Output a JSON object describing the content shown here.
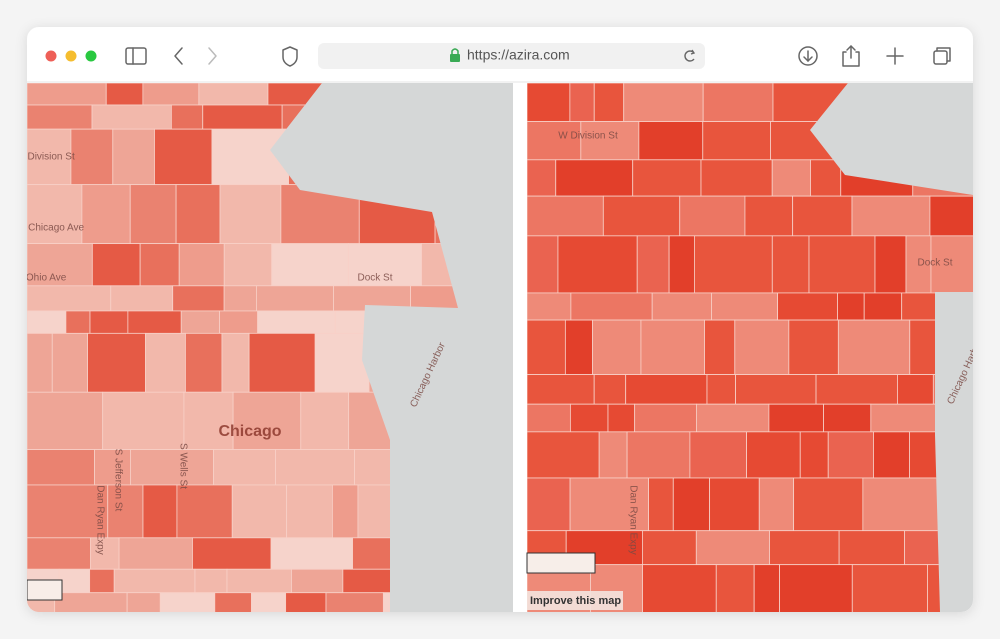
{
  "browser": {
    "url": "https://azira.com"
  },
  "maps": [
    {
      "labels": [
        "W Division St",
        "W Chicago Ave",
        "W Ohio Ave",
        "Dock St",
        "Chicago",
        "Chicago Harbor",
        "S Jefferson St",
        "S Wells St",
        "Dan Ryan Expy"
      ]
    },
    {
      "labels": [
        "W Division St",
        "Dock St",
        "Chicago Harbor",
        "Dan Ryan Expy"
      ],
      "attribution": "Improve this map"
    }
  ]
}
